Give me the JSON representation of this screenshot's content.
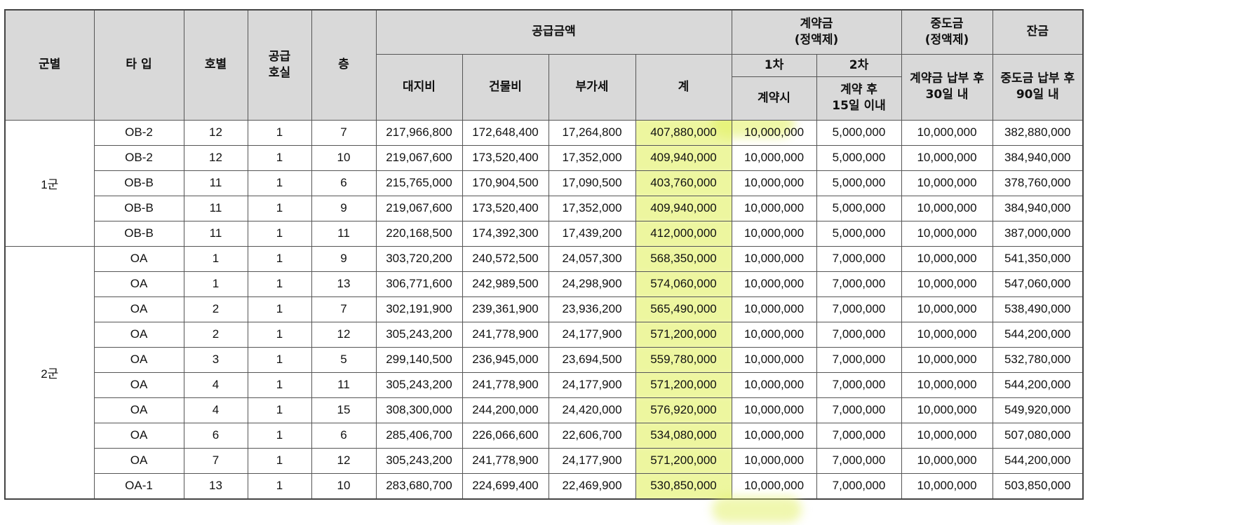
{
  "header": {
    "group": "군별",
    "type": "타 입",
    "unit_no": "호별",
    "supply_rooms": "공급\n호실",
    "floor": "층",
    "supply_amount": "공급금액",
    "land": "대지비",
    "building": "건물비",
    "vat": "부가세",
    "total": "계",
    "deposit": "계약금\n(정액제)",
    "deposit_1": "1차",
    "deposit_2": "2차",
    "deposit_1_when": "계약시",
    "deposit_2_when": "계약 후\n15일 이내",
    "middle": "중도금\n(정액제)",
    "middle_when": "계약금 납부 후\n30일 내",
    "balance": "잔금",
    "balance_when": "중도금 납부 후\n90일 내"
  },
  "groups": [
    {
      "name": "1군",
      "rows": [
        {
          "type": "OB-2",
          "unit": "12",
          "rooms": "1",
          "floor": "7",
          "land": "217,966,800",
          "building": "172,648,400",
          "vat": "17,264,800",
          "total": "407,880,000",
          "dep1": "10,000,000",
          "dep2": "5,000,000",
          "middle": "10,000,000",
          "balance": "382,880,000"
        },
        {
          "type": "OB-2",
          "unit": "12",
          "rooms": "1",
          "floor": "10",
          "land": "219,067,600",
          "building": "173,520,400",
          "vat": "17,352,000",
          "total": "409,940,000",
          "dep1": "10,000,000",
          "dep2": "5,000,000",
          "middle": "10,000,000",
          "balance": "384,940,000"
        },
        {
          "type": "OB-B",
          "unit": "11",
          "rooms": "1",
          "floor": "6",
          "land": "215,765,000",
          "building": "170,904,500",
          "vat": "17,090,500",
          "total": "403,760,000",
          "dep1": "10,000,000",
          "dep2": "5,000,000",
          "middle": "10,000,000",
          "balance": "378,760,000"
        },
        {
          "type": "OB-B",
          "unit": "11",
          "rooms": "1",
          "floor": "9",
          "land": "219,067,600",
          "building": "173,520,400",
          "vat": "17,352,000",
          "total": "409,940,000",
          "dep1": "10,000,000",
          "dep2": "5,000,000",
          "middle": "10,000,000",
          "balance": "384,940,000"
        },
        {
          "type": "OB-B",
          "unit": "11",
          "rooms": "1",
          "floor": "11",
          "land": "220,168,500",
          "building": "174,392,300",
          "vat": "17,439,200",
          "total": "412,000,000",
          "dep1": "10,000,000",
          "dep2": "5,000,000",
          "middle": "10,000,000",
          "balance": "387,000,000"
        }
      ]
    },
    {
      "name": "2군",
      "rows": [
        {
          "type": "OA",
          "unit": "1",
          "rooms": "1",
          "floor": "9",
          "land": "303,720,200",
          "building": "240,572,500",
          "vat": "24,057,300",
          "total": "568,350,000",
          "dep1": "10,000,000",
          "dep2": "7,000,000",
          "middle": "10,000,000",
          "balance": "541,350,000"
        },
        {
          "type": "OA",
          "unit": "1",
          "rooms": "1",
          "floor": "13",
          "land": "306,771,600",
          "building": "242,989,500",
          "vat": "24,298,900",
          "total": "574,060,000",
          "dep1": "10,000,000",
          "dep2": "7,000,000",
          "middle": "10,000,000",
          "balance": "547,060,000"
        },
        {
          "type": "OA",
          "unit": "2",
          "rooms": "1",
          "floor": "7",
          "land": "302,191,900",
          "building": "239,361,900",
          "vat": "23,936,200",
          "total": "565,490,000",
          "dep1": "10,000,000",
          "dep2": "7,000,000",
          "middle": "10,000,000",
          "balance": "538,490,000"
        },
        {
          "type": "OA",
          "unit": "2",
          "rooms": "1",
          "floor": "12",
          "land": "305,243,200",
          "building": "241,778,900",
          "vat": "24,177,900",
          "total": "571,200,000",
          "dep1": "10,000,000",
          "dep2": "7,000,000",
          "middle": "10,000,000",
          "balance": "544,200,000"
        },
        {
          "type": "OA",
          "unit": "3",
          "rooms": "1",
          "floor": "5",
          "land": "299,140,500",
          "building": "236,945,000",
          "vat": "23,694,500",
          "total": "559,780,000",
          "dep1": "10,000,000",
          "dep2": "7,000,000",
          "middle": "10,000,000",
          "balance": "532,780,000"
        },
        {
          "type": "OA",
          "unit": "4",
          "rooms": "1",
          "floor": "11",
          "land": "305,243,200",
          "building": "241,778,900",
          "vat": "24,177,900",
          "total": "571,200,000",
          "dep1": "10,000,000",
          "dep2": "7,000,000",
          "middle": "10,000,000",
          "balance": "544,200,000"
        },
        {
          "type": "OA",
          "unit": "4",
          "rooms": "1",
          "floor": "15",
          "land": "308,300,000",
          "building": "244,200,000",
          "vat": "24,420,000",
          "total": "576,920,000",
          "dep1": "10,000,000",
          "dep2": "7,000,000",
          "middle": "10,000,000",
          "balance": "549,920,000"
        },
        {
          "type": "OA",
          "unit": "6",
          "rooms": "1",
          "floor": "6",
          "land": "285,406,700",
          "building": "226,066,600",
          "vat": "22,606,700",
          "total": "534,080,000",
          "dep1": "10,000,000",
          "dep2": "7,000,000",
          "middle": "10,000,000",
          "balance": "507,080,000"
        },
        {
          "type": "OA",
          "unit": "7",
          "rooms": "1",
          "floor": "12",
          "land": "305,243,200",
          "building": "241,778,900",
          "vat": "24,177,900",
          "total": "571,200,000",
          "dep1": "10,000,000",
          "dep2": "7,000,000",
          "middle": "10,000,000",
          "balance": "544,200,000"
        },
        {
          "type": "OA-1",
          "unit": "13",
          "rooms": "1",
          "floor": "10",
          "land": "283,680,700",
          "building": "224,699,400",
          "vat": "22,469,900",
          "total": "530,850,000",
          "dep1": "10,000,000",
          "dep2": "7,000,000",
          "middle": "10,000,000",
          "balance": "503,850,000"
        }
      ]
    }
  ],
  "highlight_color": "#e1f05f"
}
